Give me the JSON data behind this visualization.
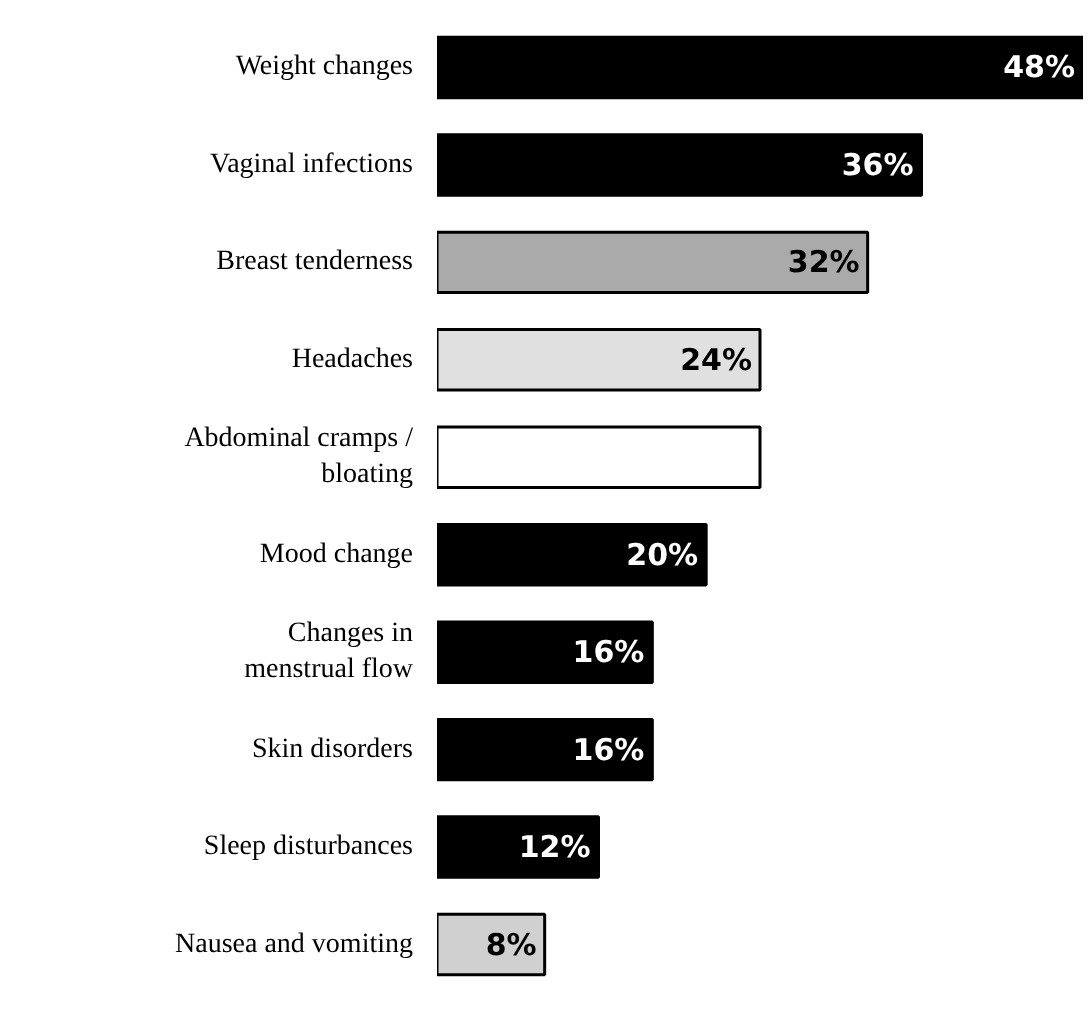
{
  "chart_data": {
    "type": "bar",
    "orientation": "horizontal",
    "categories": [
      "Weight changes",
      "Vaginal infections",
      "Breast tenderness",
      "Headaches",
      "Abdominal cramps /\nbloating",
      "Mood change",
      "Changes in\nmenstrual flow",
      "Skin disorders",
      "Sleep disturbances",
      "Nausea and vomiting"
    ],
    "values": [
      48,
      36,
      32,
      24,
      24,
      20,
      16,
      16,
      12,
      8
    ],
    "colors": [
      "#000000",
      "#000000",
      "#aaaaaa",
      "#e0e0e0",
      "#ffffff",
      "#000000",
      "#000000",
      "#000000",
      "#000000",
      "#d0d0d0"
    ],
    "value_labels": [
      "48%",
      "36%",
      "32%",
      "24%",
      null,
      "20%",
      "16%",
      "16%",
      "12%",
      "8%"
    ]
  }
}
